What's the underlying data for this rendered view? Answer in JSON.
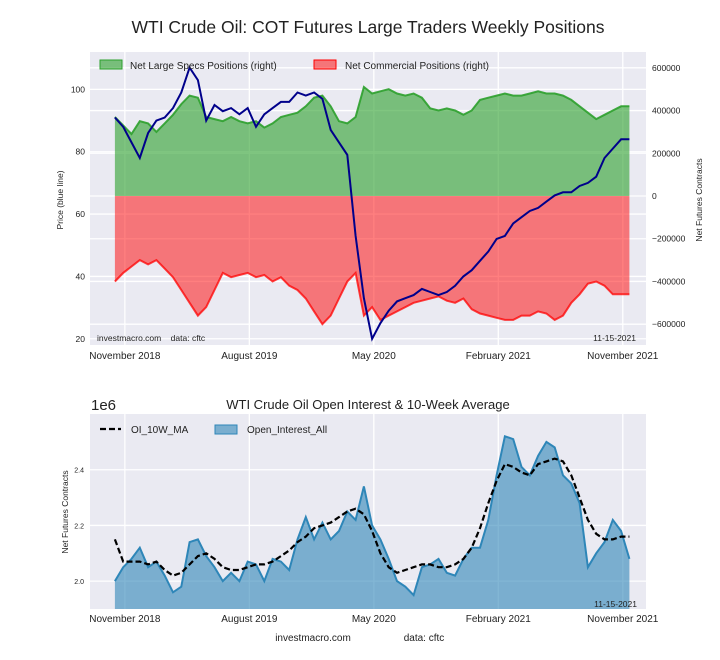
{
  "figure_title": "WTI Crude Oil: COT Futures Large Traders Weekly Positions",
  "chart_data": [
    {
      "type": "area",
      "title": "WTI Crude Oil: COT Futures Large Traders Weekly Positions",
      "xlabel": "",
      "ylabel_left": "Price (blue line)",
      "ylabel_right": "Net Futures Contracts",
      "x_tick_labels": [
        "November 2018",
        "August 2019",
        "May 2020",
        "February 2021",
        "November 2021"
      ],
      "x_ticks": [
        2018.83,
        2019.58,
        2020.33,
        2021.08,
        2021.83
      ],
      "x_range": [
        2018.62,
        2021.97
      ],
      "y_left_ticks": [
        20,
        40,
        60,
        80,
        100
      ],
      "y_left_range": [
        18,
        112
      ],
      "y_right_ticks": [
        600000,
        400000,
        200000,
        0,
        -200000,
        -400000,
        -600000
      ],
      "y_right_tick_labels": [
        "600000",
        "400000",
        "200000",
        "0",
        "−200000",
        "−400000",
        "−600000"
      ],
      "y_right_range": [
        -660000,
        660000
      ],
      "legend": [
        "Net Large Specs Positions (right)",
        "Net Commercial Positions (right)"
      ],
      "legend_position": "top",
      "grid": true,
      "annotations": [
        "investmacro.com    data: cftc",
        "11-15-2021"
      ],
      "colors": {
        "specs": "#2ca02c",
        "commercial": "#ff0000",
        "price": "#00008b"
      },
      "x": [
        2018.77,
        2018.82,
        2018.87,
        2018.92,
        2018.97,
        2019.02,
        2019.07,
        2019.12,
        2019.17,
        2019.22,
        2019.27,
        2019.32,
        2019.37,
        2019.42,
        2019.47,
        2019.52,
        2019.57,
        2019.62,
        2019.67,
        2019.72,
        2019.77,
        2019.82,
        2019.87,
        2019.92,
        2019.97,
        2020.02,
        2020.07,
        2020.12,
        2020.17,
        2020.22,
        2020.27,
        2020.32,
        2020.37,
        2020.42,
        2020.47,
        2020.52,
        2020.57,
        2020.62,
        2020.67,
        2020.72,
        2020.77,
        2020.82,
        2020.87,
        2020.92,
        2020.97,
        2021.02,
        2021.07,
        2021.12,
        2021.17,
        2021.22,
        2021.27,
        2021.32,
        2021.37,
        2021.42,
        2021.47,
        2021.52,
        2021.57,
        2021.62,
        2021.67,
        2021.72,
        2021.77,
        2021.82,
        2021.87
      ],
      "series": [
        {
          "name": "Net Large Specs Positions",
          "axis": "right",
          "values": [
            370000,
            330000,
            290000,
            350000,
            340000,
            300000,
            340000,
            380000,
            430000,
            470000,
            460000,
            370000,
            360000,
            350000,
            370000,
            350000,
            340000,
            350000,
            320000,
            340000,
            370000,
            380000,
            390000,
            420000,
            460000,
            470000,
            420000,
            350000,
            340000,
            370000,
            510000,
            480000,
            490000,
            500000,
            480000,
            470000,
            480000,
            460000,
            410000,
            400000,
            410000,
            400000,
            380000,
            400000,
            450000,
            460000,
            470000,
            480000,
            470000,
            470000,
            480000,
            490000,
            480000,
            480000,
            470000,
            450000,
            420000,
            390000,
            360000,
            380000,
            400000,
            420000,
            420000
          ]
        },
        {
          "name": "Net Commercial Positions",
          "axis": "right",
          "values": [
            -400000,
            -360000,
            -330000,
            -300000,
            -320000,
            -300000,
            -340000,
            -380000,
            -440000,
            -500000,
            -560000,
            -520000,
            -440000,
            -360000,
            -380000,
            -370000,
            -360000,
            -380000,
            -370000,
            -400000,
            -380000,
            -420000,
            -440000,
            -480000,
            -540000,
            -600000,
            -560000,
            -480000,
            -400000,
            -360000,
            -560000,
            -520000,
            -580000,
            -560000,
            -540000,
            -520000,
            -500000,
            -490000,
            -480000,
            -470000,
            -490000,
            -500000,
            -480000,
            -530000,
            -550000,
            -560000,
            -570000,
            -580000,
            -580000,
            -560000,
            -560000,
            -540000,
            -550000,
            -580000,
            -560000,
            -500000,
            -460000,
            -410000,
            -400000,
            -420000,
            -460000,
            -460000,
            -460000
          ]
        },
        {
          "name": "Price",
          "axis": "left",
          "values": [
            91,
            88,
            83,
            78,
            86,
            90,
            91,
            94,
            99,
            107,
            103,
            90,
            95,
            93,
            94,
            92,
            94,
            88,
            92,
            94,
            96,
            96,
            99,
            98,
            99,
            97,
            87,
            83,
            79,
            53,
            33,
            20,
            25,
            29,
            32,
            33,
            34,
            36,
            35,
            34,
            35,
            37,
            40,
            42,
            45,
            48,
            52,
            53,
            57,
            59,
            61,
            62,
            64,
            66,
            67,
            67,
            69,
            70,
            72,
            78,
            81,
            84,
            84
          ]
        }
      ]
    },
    {
      "type": "area",
      "title": "WTI Crude Oil Open Interest & 10-Week Average",
      "xlabel": "",
      "ylabel": "Net Futures Contracts",
      "y_scale_label": "1e6",
      "x_tick_labels": [
        "November 2018",
        "August 2019",
        "May 2020",
        "February 2021",
        "November 2021"
      ],
      "x_ticks": [
        2018.83,
        2019.58,
        2020.33,
        2021.08,
        2021.83
      ],
      "x_range": [
        2018.62,
        2021.97
      ],
      "y_ticks": [
        2.0,
        2.2,
        2.4
      ],
      "y_tick_labels": [
        "2.0",
        "2.2",
        "2.4"
      ],
      "y_range": [
        1.9,
        2.6
      ],
      "legend": [
        "OI_10W_MA",
        "Open_Interest_All"
      ],
      "legend_position": "top-left",
      "grid": true,
      "annotations": [
        "11-15-2021"
      ],
      "footer": [
        "investmacro.com",
        "data: cftc"
      ],
      "colors": {
        "oi": "#2e86b8",
        "ma": "#000000"
      },
      "x": [
        2018.77,
        2018.82,
        2018.87,
        2018.92,
        2018.97,
        2019.02,
        2019.07,
        2019.12,
        2019.17,
        2019.22,
        2019.27,
        2019.32,
        2019.37,
        2019.42,
        2019.47,
        2019.52,
        2019.57,
        2019.62,
        2019.67,
        2019.72,
        2019.77,
        2019.82,
        2019.87,
        2019.92,
        2019.97,
        2020.02,
        2020.07,
        2020.12,
        2020.17,
        2020.22,
        2020.27,
        2020.32,
        2020.37,
        2020.42,
        2020.47,
        2020.52,
        2020.57,
        2020.62,
        2020.67,
        2020.72,
        2020.77,
        2020.82,
        2020.87,
        2020.92,
        2020.97,
        2021.02,
        2021.07,
        2021.12,
        2021.17,
        2021.22,
        2021.27,
        2021.32,
        2021.37,
        2021.42,
        2021.47,
        2021.52,
        2021.57,
        2021.62,
        2021.67,
        2021.72,
        2021.77,
        2021.82,
        2021.87
      ],
      "series": [
        {
          "name": "Open_Interest_All",
          "values": [
            2.0,
            2.05,
            2.08,
            2.12,
            2.05,
            2.07,
            2.02,
            1.96,
            1.98,
            2.14,
            2.15,
            2.09,
            2.05,
            2.0,
            2.03,
            2.0,
            2.07,
            2.06,
            2.0,
            2.08,
            2.07,
            2.04,
            2.15,
            2.23,
            2.15,
            2.21,
            2.15,
            2.18,
            2.25,
            2.22,
            2.34,
            2.2,
            2.15,
            2.08,
            2.0,
            1.98,
            1.95,
            2.05,
            2.06,
            2.08,
            2.03,
            2.02,
            2.08,
            2.12,
            2.12,
            2.22,
            2.38,
            2.52,
            2.51,
            2.41,
            2.38,
            2.45,
            2.5,
            2.48,
            2.38,
            2.35,
            2.28,
            2.05,
            2.1,
            2.14,
            2.22,
            2.18,
            2.08
          ]
        },
        {
          "name": "OI_10W_MA",
          "values": [
            2.15,
            2.07,
            2.07,
            2.07,
            2.06,
            2.07,
            2.04,
            2.02,
            2.03,
            2.06,
            2.09,
            2.1,
            2.08,
            2.05,
            2.04,
            2.04,
            2.05,
            2.06,
            2.06,
            2.07,
            2.09,
            2.11,
            2.14,
            2.16,
            2.19,
            2.2,
            2.21,
            2.23,
            2.25,
            2.26,
            2.24,
            2.18,
            2.1,
            2.05,
            2.03,
            2.04,
            2.05,
            2.06,
            2.06,
            2.05,
            2.05,
            2.06,
            2.08,
            2.12,
            2.19,
            2.28,
            2.36,
            2.42,
            2.41,
            2.39,
            2.38,
            2.42,
            2.43,
            2.44,
            2.43,
            2.38,
            2.3,
            2.22,
            2.17,
            2.15,
            2.15,
            2.16,
            2.16
          ]
        }
      ]
    }
  ]
}
